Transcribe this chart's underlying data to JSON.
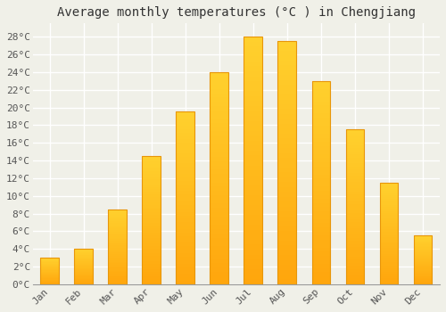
{
  "title": "Average monthly temperatures (°C ) in Chengjiang",
  "months": [
    "Jan",
    "Feb",
    "Mar",
    "Apr",
    "May",
    "Jun",
    "Jul",
    "Aug",
    "Sep",
    "Oct",
    "Nov",
    "Dec"
  ],
  "temperatures": [
    3,
    4,
    8.5,
    14.5,
    19.5,
    24,
    28,
    27.5,
    23,
    17.5,
    11.5,
    5.5
  ],
  "bar_color_top": "#FFC125",
  "bar_color_bottom": "#FFB000",
  "bar_edge_color": "#E8960A",
  "yticks": [
    0,
    2,
    4,
    6,
    8,
    10,
    12,
    14,
    16,
    18,
    20,
    22,
    24,
    26,
    28
  ],
  "ylim": [
    0,
    29.5
  ],
  "background_color": "#f0f0e8",
  "plot_bg_color": "#f0f0e8",
  "grid_color": "#ffffff",
  "title_fontsize": 10,
  "tick_fontsize": 8,
  "bar_width": 0.55
}
